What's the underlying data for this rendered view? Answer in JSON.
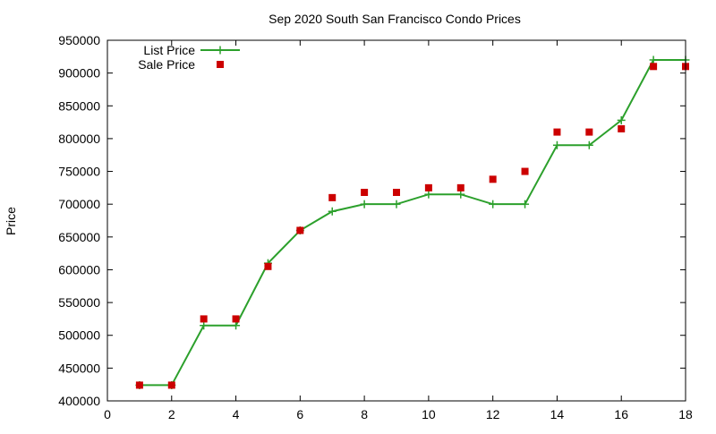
{
  "chart_data": {
    "type": "line",
    "title": "Sep 2020 South San Francisco Condo Prices",
    "xlabel": "",
    "ylabel": "Price",
    "xlim": [
      0,
      18
    ],
    "ylim": [
      400000,
      950000
    ],
    "xticks": [
      0,
      2,
      4,
      6,
      8,
      10,
      12,
      14,
      16,
      18
    ],
    "yticks": [
      400000,
      450000,
      500000,
      550000,
      600000,
      650000,
      700000,
      750000,
      800000,
      850000,
      900000,
      950000
    ],
    "grid": false,
    "legend_position": "top-left",
    "series": [
      {
        "name": "List Price",
        "style": "linespoints",
        "marker": "plus",
        "color": "#2ca02c",
        "x": [
          1,
          2,
          3,
          4,
          5,
          6,
          7,
          8,
          9,
          10,
          11,
          12,
          13,
          14,
          15,
          16,
          17,
          18
        ],
        "y": [
          424000,
          424000,
          515000,
          515000,
          610000,
          660000,
          689000,
          700000,
          700000,
          715000,
          715000,
          700000,
          700000,
          790000,
          790000,
          828000,
          920000,
          920000
        ]
      },
      {
        "name": "Sale Price",
        "style": "points",
        "marker": "square",
        "color": "#cc0000",
        "x": [
          1,
          2,
          3,
          4,
          5,
          6,
          7,
          8,
          9,
          10,
          11,
          12,
          13,
          14,
          15,
          16,
          17,
          18
        ],
        "y": [
          424000,
          424000,
          525000,
          525000,
          605000,
          660000,
          710000,
          718000,
          718000,
          725000,
          725000,
          738000,
          750000,
          810000,
          810000,
          815000,
          910000,
          910000
        ]
      }
    ]
  }
}
